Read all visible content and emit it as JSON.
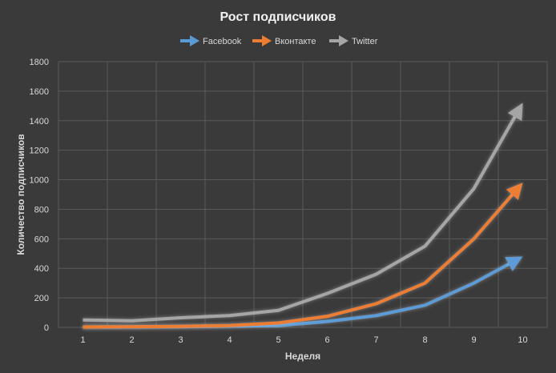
{
  "chart_data": {
    "type": "line",
    "title": "Рост подписчиков",
    "xlabel": "Неделя",
    "ylabel": "Количество подписчиков",
    "x": [
      1,
      2,
      3,
      4,
      5,
      6,
      7,
      8,
      9,
      10
    ],
    "ylim": [
      0,
      1800
    ],
    "yticks": [
      0,
      200,
      400,
      600,
      800,
      1000,
      1200,
      1400,
      1600,
      1800
    ],
    "grid": true,
    "legend": "top-center",
    "series": [
      {
        "name": "Facebook",
        "color": "#5b9bd5",
        "values": [
          2,
          3,
          5,
          8,
          12,
          40,
          80,
          150,
          300,
          480
        ]
      },
      {
        "name": "Вконтакте",
        "color": "#ed7d31",
        "values": [
          3,
          4,
          7,
          12,
          30,
          75,
          160,
          300,
          600,
          980
        ]
      },
      {
        "name": "Twitter",
        "color": "#a5a5a5",
        "values": [
          50,
          45,
          65,
          80,
          115,
          230,
          360,
          550,
          940,
          1520
        ]
      }
    ]
  }
}
